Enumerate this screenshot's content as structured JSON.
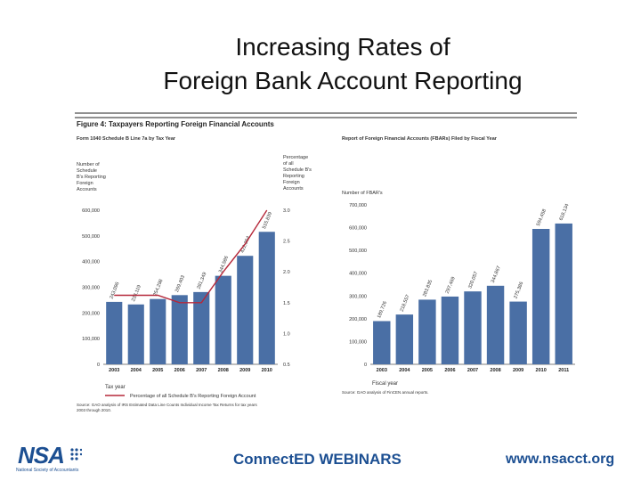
{
  "slide": {
    "title_line1": "Increasing Rates of",
    "title_line2": "Foreign Bank Account Reporting"
  },
  "figure": {
    "title": "Figure 4: Taxpayers Reporting Foreign Financial Accounts"
  },
  "colors": {
    "bar": "#4a6fa5",
    "line": "#b5283a",
    "footer_blue": "#1c4f92",
    "footer_line": "#3a6fb0"
  },
  "footer": {
    "logo_text": "NSA",
    "logo_subtext": "National Society of Accountants",
    "program": "ConnectED WEBINARS",
    "url": "www.nsacct.org"
  },
  "chart_data": [
    {
      "type": "bar",
      "subtitle": "Form 1040 Schedule B Line 7a by Tax Year",
      "ylabel_left": "Number of Schedule B's Reporting Foreign Accounts",
      "ylabel_right": "Percentage of all Schedule B's Reporting Foreign Accounts",
      "xlabel": "Tax year",
      "categories": [
        "2003",
        "2004",
        "2005",
        "2006",
        "2007",
        "2008",
        "2009",
        "2010"
      ],
      "series": [
        {
          "kind": "bar",
          "values": [
            243096,
            233119,
            254298,
            269403,
            281349,
            344586,
            422364,
            515839
          ]
        },
        {
          "kind": "line",
          "name": "Percentage of all Schedule B's Reporting Foreign Account",
          "values": [
            1.62,
            1.62,
            1.62,
            1.5,
            1.5,
            2.0,
            2.45,
            3.0
          ]
        }
      ],
      "data_labels": [
        "243,096",
        "233,119",
        "254,298",
        "269,403",
        "281,349",
        "344,586",
        "422,364",
        "515,839"
      ],
      "yticks_left": [
        "0",
        "100,000",
        "200,000",
        "300,000",
        "400,000",
        "500,000",
        "600,000"
      ],
      "yticks_right": [
        "0.5",
        "1.0",
        "1.5",
        "2.0",
        "2.5",
        "3.0"
      ],
      "ylim_left": [
        0,
        600000
      ],
      "ylim_right": [
        0.5,
        3.0
      ],
      "source": "Source: GAO analysis of IRS Estimated Data Line Counts Individual Income Tax Returns for tax years 2003 through 2010."
    },
    {
      "type": "bar",
      "subtitle": "Report of Foreign Financial Accounts (FBARs) Filed by Fiscal Year",
      "ylabel": "Number of FBAR's",
      "xlabel": "Fiscal year",
      "categories": [
        "2003",
        "2004",
        "2005",
        "2006",
        "2007",
        "2008",
        "2009",
        "2010",
        "2011"
      ],
      "values": [
        189726,
        218557,
        283835,
        297469,
        320057,
        344867,
        275386,
        594458,
        618134
      ],
      "data_labels": [
        "189,726",
        "218,557",
        "283,835",
        "297,469",
        "320,057",
        "344,867",
        "275,386",
        "594,458",
        "618,134"
      ],
      "yticks": [
        "0",
        "100,000",
        "200,000",
        "300,000",
        "400,000",
        "500,000",
        "600,000",
        "700,000"
      ],
      "ylim": [
        0,
        700000
      ],
      "source": "Source: GAO analysis of FinCEN annual reports."
    }
  ]
}
